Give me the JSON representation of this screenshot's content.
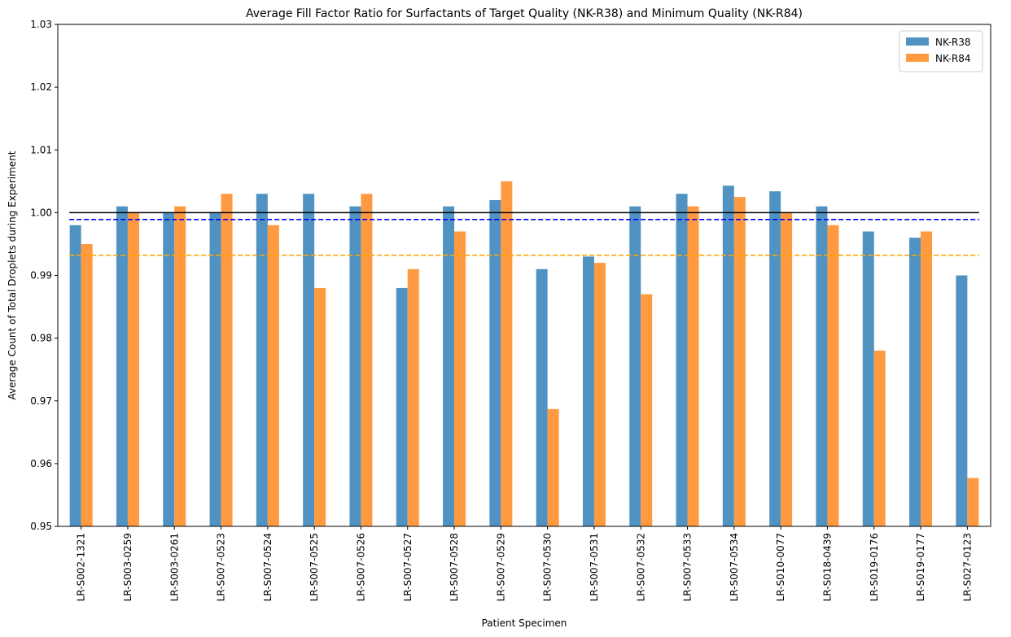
{
  "chart_data": {
    "type": "bar",
    "title": "Average Fill Factor Ratio for Surfactants of Target Quality (NK-R38) and Minimum Quality (NK-R84)",
    "xlabel": "Patient Specimen",
    "ylabel": "Average Count of Total Droplets during Experiment",
    "ylim": [
      0.95,
      1.03
    ],
    "yticks": [
      "0.95",
      "0.96",
      "0.97",
      "0.98",
      "0.99",
      "1.00",
      "1.01",
      "1.02",
      "1.03"
    ],
    "categories": [
      "LR-S002-1321",
      "LR-S003-0259",
      "LR-S003-0261",
      "LR-S007-0523",
      "LR-S007-0524",
      "LR-S007-0525",
      "LR-S007-0526",
      "LR-S007-0527",
      "LR-S007-0528",
      "LR-S007-0529",
      "LR-S007-0530",
      "LR-S007-0531",
      "LR-S007-0532",
      "LR-S007-0533",
      "LR-S007-0534",
      "LR-S010-0077",
      "LR-S018-0439",
      "LR-S019-0176",
      "LR-S019-0177",
      "LR-S027-0123"
    ],
    "series": [
      {
        "name": "NK-R38",
        "color": "#5093c3",
        "values": [
          0.998,
          1.001,
          1.0,
          1.0,
          1.003,
          1.003,
          1.001,
          0.988,
          1.001,
          1.002,
          0.991,
          0.993,
          1.001,
          1.003,
          1.0043,
          1.0034,
          1.001,
          0.997,
          0.996,
          0.99
        ]
      },
      {
        "name": "NK-R84",
        "color": "#ff9a40",
        "values": [
          0.995,
          1.0,
          1.001,
          1.003,
          0.998,
          0.988,
          1.003,
          0.991,
          0.997,
          1.005,
          0.9687,
          0.992,
          0.987,
          1.001,
          1.0025,
          1.0,
          0.998,
          0.978,
          0.997,
          0.9577
        ]
      }
    ],
    "reference_lines": [
      {
        "value": 1.0,
        "color": "#000000",
        "style": "solid"
      },
      {
        "value": 0.9989,
        "color": "#0000ff",
        "style": "dashed"
      },
      {
        "value": 0.9932,
        "color": "#ffa500",
        "style": "dashed"
      }
    ],
    "legend": {
      "placement": "top-right"
    },
    "grid": false
  }
}
